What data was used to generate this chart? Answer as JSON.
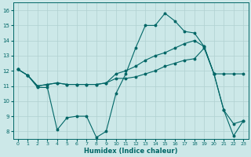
{
  "xlabel": "Humidex (Indice chaleur)",
  "bg_color": "#cce8e8",
  "grid_color": "#b0d0d0",
  "line_color": "#006666",
  "xlim": [
    -0.5,
    23.5
  ],
  "ylim": [
    7.5,
    16.5
  ],
  "yticks": [
    8,
    9,
    10,
    11,
    12,
    13,
    14,
    15,
    16
  ],
  "xticks": [
    0,
    1,
    2,
    3,
    4,
    5,
    6,
    7,
    8,
    9,
    10,
    11,
    12,
    13,
    14,
    15,
    16,
    17,
    18,
    19,
    20,
    21,
    22,
    23
  ],
  "line1_x": [
    0,
    1,
    2,
    3,
    4,
    5,
    6,
    7,
    8,
    9,
    10,
    11,
    12,
    13,
    14,
    15,
    16,
    17,
    18,
    19,
    20,
    21,
    22,
    23
  ],
  "line1_y": [
    12.1,
    11.7,
    10.9,
    10.9,
    8.1,
    8.9,
    9.0,
    9.0,
    7.6,
    8.0,
    10.5,
    11.8,
    13.5,
    15.0,
    15.0,
    15.8,
    15.3,
    14.6,
    14.5,
    13.6,
    11.8,
    9.4,
    7.7,
    8.7
  ],
  "line2_x": [
    0,
    1,
    2,
    3,
    4,
    5,
    6,
    7,
    8,
    9,
    10,
    11,
    12,
    13,
    14,
    15,
    16,
    17,
    18,
    19,
    20,
    21,
    22,
    23
  ],
  "line2_y": [
    12.1,
    11.7,
    11.0,
    11.1,
    11.2,
    11.1,
    11.1,
    11.1,
    11.1,
    11.2,
    11.8,
    12.0,
    12.3,
    12.7,
    13.0,
    13.2,
    13.5,
    13.8,
    14.0,
    13.6,
    11.8,
    9.4,
    8.5,
    8.7
  ],
  "line3_x": [
    0,
    1,
    2,
    3,
    4,
    5,
    6,
    7,
    8,
    9,
    10,
    11,
    12,
    13,
    14,
    15,
    16,
    17,
    18,
    19,
    20,
    21,
    22,
    23
  ],
  "line3_y": [
    12.1,
    11.7,
    11.0,
    11.1,
    11.2,
    11.1,
    11.1,
    11.1,
    11.1,
    11.2,
    11.5,
    11.5,
    11.6,
    11.8,
    12.0,
    12.3,
    12.5,
    12.7,
    12.8,
    13.5,
    11.8,
    11.8,
    11.8,
    11.8
  ]
}
